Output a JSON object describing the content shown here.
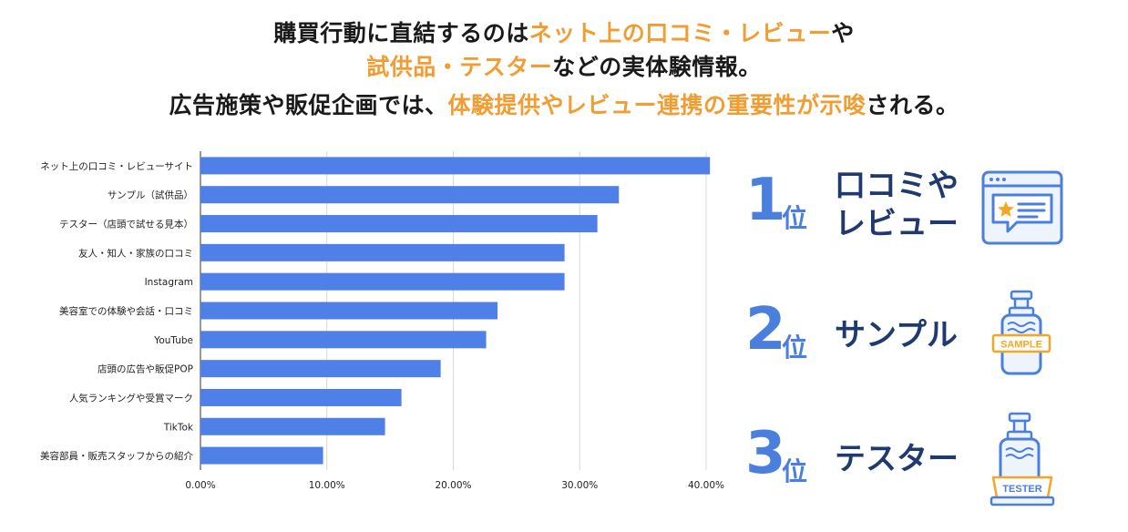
{
  "headline": {
    "line1_pre": "購買行動に直結するのは",
    "line1_hl": "ネット上の口コミ・レビュー",
    "line1_post": "や",
    "line2_hl": "試供品・テスター",
    "line2_post": "などの実体験情報。",
    "line3_pre": "広告施策や販促企画では、",
    "line3_hl": "体験提供やレビュー連携の重要性が示唆",
    "line3_post": "される。"
  },
  "colors": {
    "bar": "#4e80e8",
    "accent_orange": "#f09d33",
    "rank_blue": "#4a7fdd",
    "rank_text": "#1f3a6e"
  },
  "chart_data": {
    "type": "bar",
    "orientation": "horizontal",
    "title": "",
    "xlabel": "",
    "ylabel": "",
    "xlim": [
      0,
      40
    ],
    "ticks": [
      0,
      10,
      20,
      30,
      40
    ],
    "tick_labels": [
      "0.00%",
      "10.00%",
      "20.00%",
      "30.00%",
      "40.00%"
    ],
    "categories": [
      "ネット上の口コミ・レビューサイト",
      "サンプル（試供品）",
      "テスター（店頭で試せる見本）",
      "友人・知人・家族の口コミ",
      "Instagram",
      "美容室での体験や会話・口コミ",
      "YouTube",
      "店頭の広告や販促POP",
      "人気ランキングや受賞マーク",
      "TikTok",
      "美容部員・販売スタッフからの紹介"
    ],
    "values": [
      40.3,
      33.1,
      31.4,
      28.8,
      28.8,
      23.5,
      22.6,
      19.0,
      15.9,
      14.6,
      9.7
    ],
    "grid": true
  },
  "ranking": [
    {
      "num": "1",
      "suffix": "位",
      "line1": "口コミや",
      "line2": "レビュー",
      "icon": "review-window-icon"
    },
    {
      "num": "2",
      "suffix": "位",
      "line1": "サンプル",
      "line2": "",
      "icon": "sample-bottle-icon",
      "badge": "SAMPLE"
    },
    {
      "num": "3",
      "suffix": "位",
      "line1": "テスター",
      "line2": "",
      "icon": "tester-bottle-icon",
      "badge": "TESTER"
    }
  ]
}
